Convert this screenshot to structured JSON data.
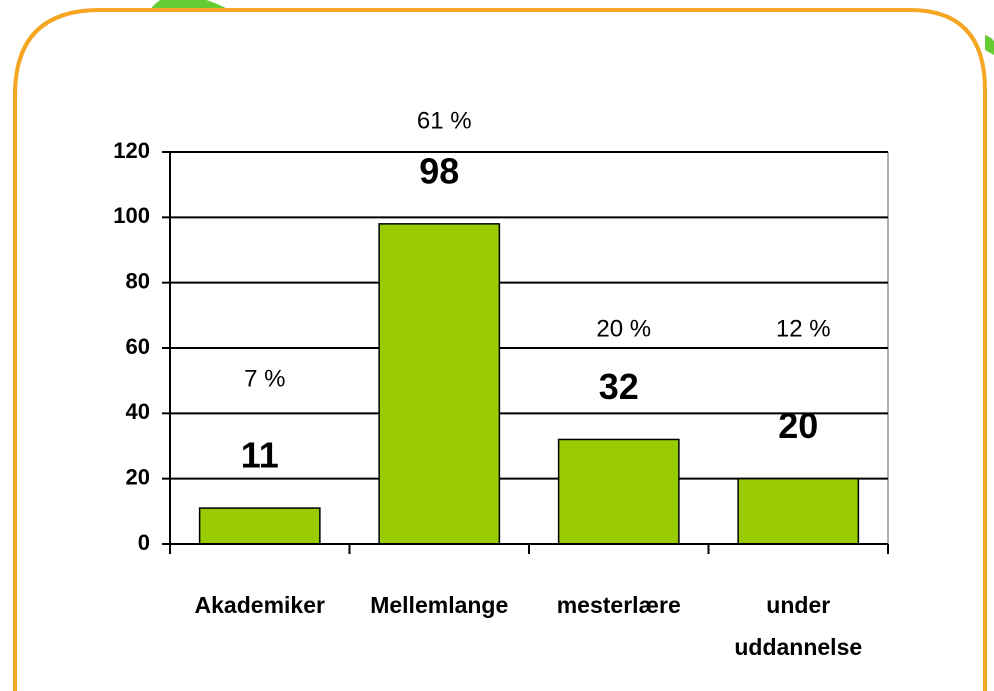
{
  "chart_data": {
    "type": "bar",
    "categories": [
      "Akademiker",
      "Mellemlange",
      "mesterlære",
      "under uddannelse"
    ],
    "values": [
      11,
      98,
      32,
      20
    ],
    "annotations": [
      "7 %",
      "61 %",
      "20 %",
      "12 %"
    ],
    "color": "#99cc00",
    "ylim": [
      0,
      120
    ],
    "yticks": [
      0,
      20,
      40,
      60,
      80,
      100,
      120
    ],
    "grid": true
  }
}
